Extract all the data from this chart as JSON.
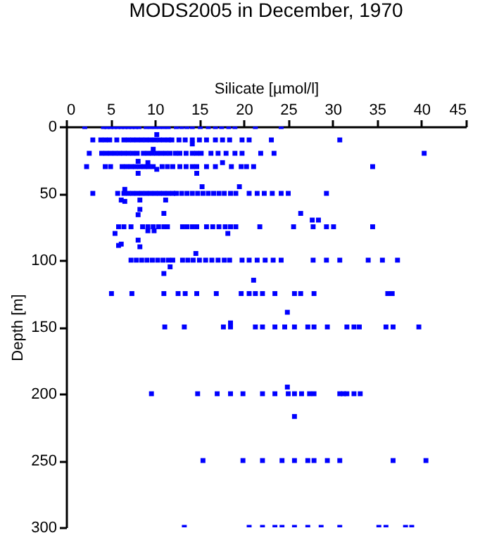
{
  "chart_data": {
    "type": "scatter",
    "title": "MODS2005 in December, 1970",
    "xlabel": "Silicate [µmol/l]",
    "ylabel": "Depth [m]",
    "xlim": [
      0,
      45
    ],
    "xticks": [
      0,
      5,
      10,
      15,
      20,
      25,
      30,
      35,
      40,
      45
    ],
    "ylim": [
      300,
      0
    ],
    "yticks": [
      0,
      50,
      100,
      150,
      200,
      250,
      300
    ],
    "marker": "square",
    "grid": false,
    "legend": false,
    "series": [
      {
        "color": "#0000ff",
        "x": [
          2.1,
          4.2,
          4.6,
          5.0,
          5.4,
          5.8,
          6.2,
          6.6,
          7.0,
          7.4,
          7.8,
          8.2,
          9.0,
          9.5,
          10.0,
          10.5,
          11.0,
          11.5,
          12.4,
          13.0,
          13.6,
          14.2,
          15.1,
          16.0,
          16.8,
          17.5,
          18.3,
          19.0,
          21.3,
          24.2
        ],
        "values": [
          0,
          0,
          0,
          0,
          0,
          0,
          0,
          0,
          0,
          0,
          0,
          0,
          0,
          0,
          0,
          0,
          0,
          0,
          0,
          0,
          0,
          0,
          0,
          0,
          0,
          0,
          0,
          0,
          0,
          0
        ]
      },
      {
        "color": "#0000ff",
        "x": [
          3.0,
          3.9,
          4.4,
          4.9,
          5.7,
          6.5,
          7.0,
          7.5,
          8.0,
          8.5,
          9.0,
          9.5,
          10.0,
          10.5,
          11.0,
          11.5,
          11.9,
          12.7,
          13.4,
          14.2,
          15.0,
          15.8,
          16.8,
          17.6,
          18.4,
          19.8,
          20.6,
          23.1,
          30.8
        ],
        "values": [
          10,
          10,
          10,
          10,
          10,
          10,
          10,
          10,
          10,
          10,
          10,
          10,
          10,
          10,
          10,
          10,
          10,
          10,
          10,
          10,
          10,
          10,
          10,
          10,
          10,
          10,
          10,
          10,
          10
        ]
      },
      {
        "color": "#0000ff",
        "x": [
          2.6,
          4.0,
          4.5,
          5.0,
          5.5,
          6.0,
          6.5,
          7.0,
          7.5,
          8.0,
          8.7,
          9.2,
          9.7,
          10.2,
          10.7,
          11.2,
          11.7,
          12.3,
          12.8,
          13.5,
          14.2,
          14.7,
          15.2,
          16.3,
          17.1,
          18.0,
          19.0,
          19.8,
          21.9,
          23.4,
          40.3
        ],
        "values": [
          20,
          20,
          20,
          20,
          20,
          20,
          20,
          20,
          20,
          20,
          20,
          20,
          20,
          20,
          20,
          20,
          20,
          20,
          20,
          20,
          20,
          20,
          20,
          20,
          20,
          20,
          20,
          20,
          20,
          20,
          20
        ]
      },
      {
        "color": "#0000ff",
        "x": [
          2.3,
          4.4,
          5.0,
          6.3,
          6.8,
          7.3,
          7.8,
          8.3,
          8.8,
          9.3,
          9.8,
          10.8,
          11.4,
          12.0,
          12.8,
          13.5,
          14.2,
          14.7,
          15.8,
          16.8,
          18.6,
          19.7,
          20.3,
          21.1,
          34.5
        ],
        "values": [
          30,
          30,
          30,
          30,
          30,
          30,
          30,
          30,
          30,
          30,
          30,
          30,
          30,
          30,
          30,
          30,
          30,
          30,
          30,
          30,
          30,
          30,
          30,
          30,
          30
        ]
      },
      {
        "color": "#0000ff",
        "x": [
          3.0,
          5.8,
          6.5,
          7.0,
          7.5,
          8.0,
          8.5,
          9.0,
          9.5,
          10.0,
          10.5,
          11.0,
          11.5,
          12.0,
          12.4,
          13.0,
          13.6,
          14.2,
          14.8,
          15.4,
          16.0,
          16.6,
          17.2,
          17.8,
          18.5,
          19.1,
          20.6,
          21.5,
          22.3,
          23.2,
          24.2,
          25.0,
          29.3
        ],
        "values": [
          50,
          50,
          50,
          50,
          50,
          50,
          50,
          50,
          50,
          50,
          50,
          50,
          50,
          50,
          50,
          50,
          50,
          50,
          50,
          50,
          50,
          50,
          50,
          50,
          50,
          50,
          50,
          50,
          50,
          50,
          50,
          50,
          50
        ]
      },
      {
        "color": "#0000ff",
        "x": [
          5.9,
          6.5,
          7.3,
          8.6,
          9.2,
          9.8,
          10.4,
          11.0,
          11.4,
          13.1,
          13.6,
          14.2,
          14.7,
          15.8,
          16.5,
          17.2,
          17.9,
          18.5,
          19.1,
          21.8,
          25.6,
          27.8,
          29.3,
          30.1,
          34.5
        ],
        "values": [
          75,
          75,
          75,
          75,
          75,
          75,
          75,
          75,
          75,
          75,
          75,
          75,
          75,
          75,
          75,
          75,
          75,
          75,
          75,
          75,
          75,
          75,
          75,
          75,
          75
        ]
      },
      {
        "color": "#0000ff",
        "x": [
          7.3,
          7.9,
          8.5,
          9.1,
          9.7,
          10.3,
          10.9,
          11.5,
          12.0,
          13.1,
          13.7,
          14.3,
          15.0,
          15.7,
          16.4,
          17.1,
          17.8,
          18.4,
          19.8,
          20.6,
          21.5,
          22.4,
          23.3,
          24.2,
          27.8,
          29.3,
          30.8,
          34.0,
          35.6,
          37.3
        ],
        "values": [
          100,
          100,
          100,
          100,
          100,
          100,
          100,
          100,
          100,
          100,
          100,
          100,
          100,
          100,
          100,
          100,
          100,
          100,
          100,
          100,
          100,
          100,
          100,
          100,
          100,
          100,
          100,
          100,
          100,
          100
        ]
      },
      {
        "color": "#0000ff",
        "x": [
          5.1,
          7.4,
          11.0,
          12.6,
          13.4,
          14.7,
          16.9,
          19.7,
          20.6,
          21.3,
          22.1,
          23.5,
          25.7,
          26.4,
          27.9,
          36.2,
          36.7
        ],
        "values": [
          125,
          125,
          125,
          125,
          125,
          125,
          125,
          125,
          125,
          125,
          125,
          125,
          125,
          125,
          125,
          125,
          125
        ]
      },
      {
        "color": "#0000ff",
        "x": [
          11.1,
          13.3,
          17.7,
          18.5,
          21.3,
          22.1,
          23.5,
          24.6,
          25.7,
          27.2,
          27.9,
          29.4,
          31.6,
          32.4,
          33.0,
          36.0,
          36.8,
          39.7
        ],
        "values": [
          150,
          150,
          150,
          150,
          150,
          150,
          150,
          150,
          150,
          150,
          150,
          150,
          150,
          150,
          150,
          150,
          150,
          150
        ]
      },
      {
        "color": "#0000ff",
        "x": [
          9.6,
          14.8,
          17.0,
          18.5,
          19.9,
          22.1,
          23.5,
          25.0,
          25.7,
          26.5,
          27.4,
          27.9,
          30.8,
          31.2,
          31.6,
          32.4,
          33.1
        ],
        "values": [
          200,
          200,
          200,
          200,
          200,
          200,
          200,
          200,
          200,
          200,
          200,
          200,
          200,
          200,
          200,
          200,
          200
        ]
      },
      {
        "color": "#0000ff",
        "x": [
          15.4,
          19.9,
          22.1,
          24.3,
          25.7,
          27.2,
          27.9,
          29.4,
          30.8,
          36.8,
          40.5
        ],
        "values": [
          250,
          250,
          250,
          250,
          250,
          250,
          250,
          250,
          250,
          250,
          250
        ]
      },
      {
        "color": "#0000ff",
        "x": [
          13.3,
          20.6,
          22.1,
          23.5,
          24.3,
          25.7,
          27.2,
          28.7,
          30.8,
          35.2,
          36.0,
          38.2,
          38.9
        ],
        "values": [
          300,
          300,
          300,
          300,
          300,
          300,
          300,
          300,
          300,
          300,
          300,
          300,
          300
        ]
      },
      {
        "color": "#0000ff",
        "x": [
          10.2,
          14.2,
          9.8,
          8.1,
          9.2,
          17.6,
          10.2,
          8.1,
          14.7,
          15.3,
          19.5,
          6.6,
          6.2,
          8.3,
          11.2,
          6.6,
          8.3,
          11.0,
          26.4,
          8.1,
          27.7,
          28.4,
          9.2,
          9.9,
          5.5,
          18.2,
          8.1,
          6.2,
          5.9,
          8.3,
          14.6,
          11.7,
          11.0,
          21.1,
          24.9,
          18.5,
          24.9,
          25.7
        ],
        "values": [
          6,
          13,
          17,
          26,
          27,
          27,
          32,
          35,
          35,
          45,
          45,
          47,
          55,
          55,
          55,
          56,
          62,
          65,
          65,
          66,
          70,
          70,
          78,
          78,
          80,
          80,
          85,
          88,
          89,
          90,
          95,
          105,
          110,
          115,
          139,
          147,
          195,
          217
        ]
      }
    ]
  }
}
